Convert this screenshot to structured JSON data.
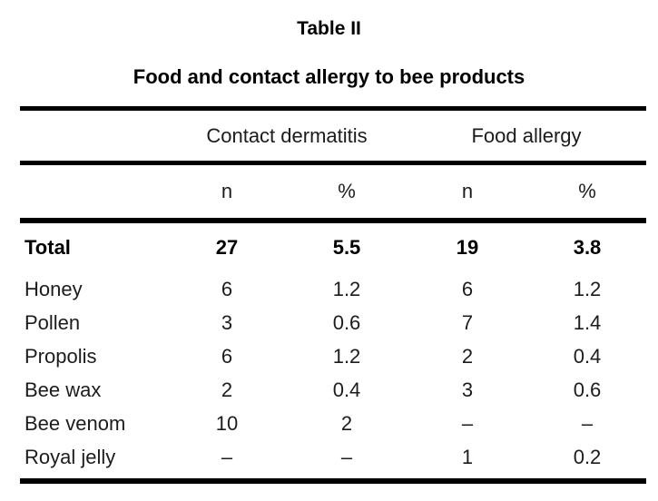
{
  "title": "Table II",
  "subtitle": "Food and contact allergy to bee products",
  "table": {
    "group_headers": {
      "contact_dermatitis": "Contact dermatitis",
      "food_allergy": "Food allergy"
    },
    "sub_headers": {
      "n1": "n",
      "pct1": "%",
      "n2": "n",
      "pct2": "%"
    },
    "total_row": {
      "label": "Total",
      "values": [
        "27",
        "5.5",
        "19",
        "3.8"
      ]
    },
    "rows": [
      {
        "label": "Honey",
        "values": [
          "6",
          "1.2",
          "6",
          "1.2"
        ]
      },
      {
        "label": "Pollen",
        "values": [
          "3",
          "0.6",
          "7",
          "1.4"
        ]
      },
      {
        "label": "Propolis",
        "values": [
          "6",
          "1.2",
          "2",
          "0.4"
        ]
      },
      {
        "label": "Bee wax",
        "values": [
          "2",
          "0.4",
          "3",
          "0.6"
        ]
      },
      {
        "label": "Bee venom",
        "values": [
          "10",
          "2",
          "–",
          "–"
        ]
      },
      {
        "label": "Royal jelly",
        "values": [
          "–",
          "–",
          "1",
          "0.2"
        ]
      }
    ]
  }
}
